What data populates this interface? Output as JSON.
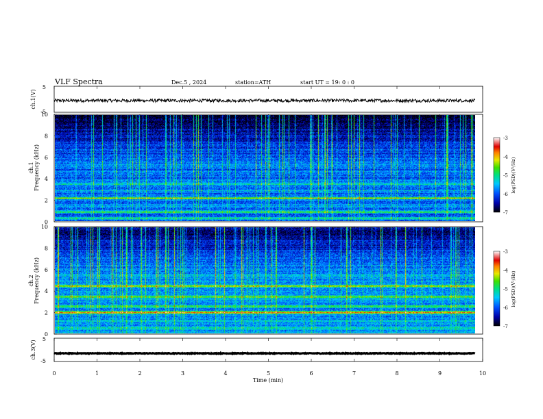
{
  "header": {
    "title": "VLF  Spectra",
    "date": "Dec.5  , 2024",
    "station": "station=ATH",
    "start": "start  UT  =    19: 0   : 0"
  },
  "chart_data": [
    {
      "type": "line",
      "name": "ch1-waveform",
      "ylabel": "ch.1(V)",
      "yticks": [
        "5",
        "-5"
      ],
      "ylim": [
        -5,
        5
      ],
      "xlim": [
        0,
        10
      ],
      "data_extent_min": [
        0,
        9.82
      ],
      "baseline_v": -0.5,
      "noise_amp_v": 0.6
    },
    {
      "type": "heatmap",
      "name": "ch1-spectrogram",
      "ylabel": "ch.1\nFrequency  (kHz)",
      "ylim": [
        0,
        10
      ],
      "yticks": [
        "10",
        "8",
        "6",
        "4",
        "2",
        "0"
      ],
      "xlim": [
        0,
        10
      ],
      "colorbar": {
        "label": "log(PSD)(V²/Hz)",
        "ticks": [
          "-3",
          "-4",
          "-5",
          "-6",
          "-7"
        ],
        "range": [
          -7,
          -3
        ]
      },
      "bands_khz": [
        {
          "freq": 0.3,
          "level": -5.0
        },
        {
          "freq": 0.9,
          "level": -4.8
        },
        {
          "freq": 1.5,
          "level": -5.6
        },
        {
          "freq": 2.2,
          "level": -4.4
        },
        {
          "freq": 2.9,
          "level": -5.5
        },
        {
          "freq": 3.5,
          "level": -5.4
        },
        {
          "freq": 4.6,
          "level": -5.6
        },
        {
          "freq": 5.4,
          "level": -5.8
        }
      ]
    },
    {
      "type": "heatmap",
      "name": "ch2-spectrogram",
      "ylabel": "ch.2\nFrequency  (kHz)",
      "ylim": [
        0,
        10
      ],
      "yticks": [
        "10",
        "8",
        "6",
        "4",
        "2",
        "0"
      ],
      "xlim": [
        0,
        10
      ],
      "colorbar": {
        "label": "log(PSD)(V²/Hz)",
        "ticks": [
          "-3",
          "-4",
          "-5",
          "-6",
          "-7"
        ],
        "range": [
          -7,
          -3
        ]
      },
      "bands_khz": [
        {
          "freq": 0.5,
          "level": -5.0
        },
        {
          "freq": 1.2,
          "level": -5.2
        },
        {
          "freq": 2.0,
          "level": -3.8
        },
        {
          "freq": 2.6,
          "level": -4.8
        },
        {
          "freq": 3.5,
          "level": -4.4
        },
        {
          "freq": 4.5,
          "level": -4.3
        },
        {
          "freq": 5.2,
          "level": -5.6
        }
      ]
    },
    {
      "type": "line",
      "name": "ch3-waveform",
      "ylabel": "ch.3(V)",
      "yticks": [
        "5",
        "-5"
      ],
      "ylim": [
        -5,
        5
      ],
      "xlim": [
        0,
        10
      ],
      "data_extent_min": [
        0,
        9.82
      ],
      "baseline_v": -1.5,
      "noise_amp_v": 0.15
    }
  ],
  "xaxis": {
    "label": "Time  (min)",
    "ticks": [
      "0",
      "1",
      "2",
      "3",
      "4",
      "5",
      "6",
      "7",
      "8",
      "9",
      "10"
    ],
    "range": [
      0,
      10
    ]
  }
}
